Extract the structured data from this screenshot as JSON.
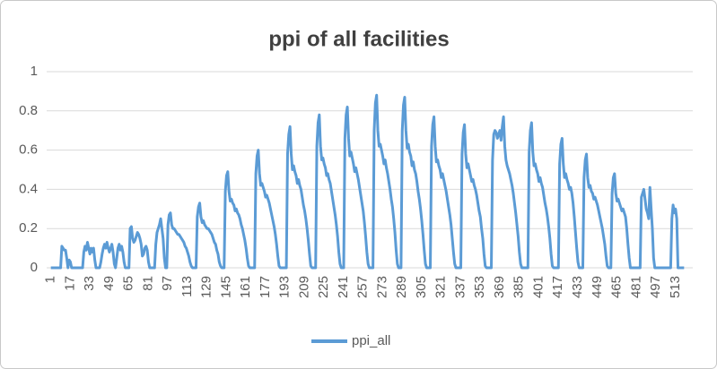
{
  "chart_data": {
    "type": "line",
    "title": "ppi of all facilities",
    "x": [
      1,
      2,
      3,
      4,
      5,
      6,
      7,
      8,
      9,
      10,
      11,
      12,
      13,
      14,
      15,
      16,
      17,
      18,
      19,
      20,
      21,
      22,
      23,
      24,
      25,
      26,
      27,
      28,
      29,
      30,
      31,
      32,
      33,
      34,
      35,
      36,
      37,
      38,
      39,
      40,
      41,
      42,
      43,
      44,
      45,
      46,
      47,
      48,
      49,
      50,
      51,
      52,
      53,
      54,
      55,
      56,
      57,
      58,
      59,
      60,
      61,
      62,
      63,
      64,
      65,
      66,
      67,
      68,
      69,
      70,
      71,
      72,
      73,
      74,
      75,
      76,
      77,
      78,
      79,
      80,
      81,
      82,
      83,
      84,
      85,
      86,
      87,
      88,
      89,
      90,
      91,
      92,
      93,
      94,
      95,
      96,
      97,
      98,
      99,
      100,
      101,
      102,
      103,
      104,
      105,
      106,
      107,
      108,
      109,
      110,
      111,
      112,
      113,
      114,
      115,
      116,
      117,
      118,
      119,
      120,
      121,
      122,
      123,
      124,
      125,
      126,
      127,
      128,
      129,
      130,
      131,
      132,
      133,
      134,
      135,
      136,
      137,
      138,
      139,
      140,
      141,
      142,
      143,
      144,
      145,
      146,
      147,
      148,
      149,
      150,
      151,
      152,
      153,
      154,
      155,
      156,
      157,
      158,
      159,
      160,
      161,
      162,
      163,
      164,
      165,
      166,
      167,
      168,
      169,
      170,
      171,
      172,
      173,
      174,
      175,
      176,
      177,
      178,
      179,
      180,
      181,
      182,
      183,
      184,
      185,
      186,
      187,
      188,
      189,
      190,
      191,
      192,
      193,
      194,
      195,
      196,
      197,
      198,
      199,
      200,
      201,
      202,
      203,
      204,
      205,
      206,
      207,
      208,
      209,
      210,
      211,
      212,
      213,
      214,
      215,
      216,
      217,
      218,
      219,
      220,
      221,
      222,
      223,
      224,
      225,
      226,
      227,
      228,
      229,
      230,
      231,
      232,
      233,
      234,
      235,
      236,
      237,
      238,
      239,
      240,
      241,
      242,
      243,
      244,
      245,
      246,
      247,
      248,
      249,
      250,
      251,
      252,
      253,
      254,
      255,
      256,
      257,
      258,
      259,
      260,
      261,
      262,
      263,
      264,
      265,
      266,
      267,
      268,
      269,
      270,
      271,
      272,
      273,
      274,
      275,
      276,
      277,
      278,
      279,
      280,
      281,
      282,
      283,
      284,
      285,
      286,
      287,
      288,
      289,
      290,
      291,
      292,
      293,
      294,
      295,
      296,
      297,
      298,
      299,
      300,
      301,
      302,
      303,
      304,
      305,
      306,
      307,
      308,
      309,
      310,
      311,
      312,
      313,
      314,
      315,
      316,
      317,
      318,
      319,
      320,
      321,
      322,
      323,
      324,
      325,
      326,
      327,
      328,
      329,
      330,
      331,
      332,
      333,
      334,
      335,
      336,
      337,
      338,
      339,
      340,
      341,
      342,
      343,
      344,
      345,
      346,
      347,
      348,
      349,
      350,
      351,
      352,
      353,
      354,
      355,
      356,
      357,
      358,
      359,
      360,
      361,
      362,
      363,
      364,
      365,
      366,
      367,
      368,
      369,
      370,
      371,
      372,
      373,
      374,
      375,
      376,
      377,
      378,
      379,
      380,
      381,
      382,
      383,
      384,
      385,
      386,
      387,
      388,
      389,
      390,
      391,
      392,
      393,
      394,
      395,
      396,
      397,
      398,
      399,
      400,
      401,
      402,
      403,
      404,
      405,
      406,
      407,
      408,
      409,
      410,
      411,
      412,
      413,
      414,
      415,
      416,
      417,
      418,
      419,
      420,
      421,
      422,
      423,
      424,
      425,
      426,
      427,
      428,
      429,
      430,
      431,
      432,
      433,
      434,
      435,
      436,
      437,
      438,
      439,
      440,
      441,
      442,
      443,
      444,
      445,
      446,
      447,
      448,
      449,
      450,
      451,
      452,
      453,
      454,
      455,
      456,
      457,
      458,
      459,
      460,
      461,
      462,
      463,
      464,
      465,
      466,
      467,
      468,
      469,
      470,
      471,
      472,
      473,
      474,
      475,
      476,
      477,
      478,
      479,
      480,
      481,
      482,
      483,
      484,
      485,
      486,
      487,
      488,
      489,
      490,
      491,
      492,
      493,
      494,
      495,
      496,
      497,
      498,
      499,
      500,
      501,
      502,
      503,
      504,
      505,
      506,
      507,
      508,
      509,
      510,
      511,
      512,
      513,
      514,
      515,
      516,
      517,
      518,
      519,
      520
    ],
    "series": [
      {
        "name": "ppi_all",
        "color": "#5b9bd5",
        "values": [
          0,
          0,
          0,
          0,
          0,
          0,
          0,
          0,
          0,
          0.11,
          0.1,
          0.09,
          0.09,
          0.05,
          0,
          0.04,
          0.03,
          0,
          0,
          0,
          0,
          0,
          0,
          0,
          0,
          0,
          0,
          0.08,
          0.11,
          0.09,
          0.13,
          0.1,
          0.07,
          0.1,
          0.08,
          0.1,
          0.04,
          0,
          0,
          0,
          0,
          0.03,
          0.07,
          0.1,
          0.12,
          0.1,
          0.13,
          0.1,
          0.08,
          0.1,
          0.12,
          0.08,
          0.02,
          0,
          0.05,
          0.1,
          0.12,
          0.09,
          0.11,
          0.08,
          0.03,
          0,
          0,
          0,
          0,
          0.2,
          0.21,
          0.15,
          0.13,
          0.14,
          0.16,
          0.18,
          0.17,
          0.15,
          0.12,
          0.06,
          0.07,
          0.1,
          0.11,
          0.09,
          0.03,
          0,
          0,
          0,
          0,
          0,
          0.12,
          0.18,
          0.2,
          0.22,
          0.25,
          0.2,
          0.15,
          0.05,
          0,
          0,
          0.22,
          0.27,
          0.28,
          0.22,
          0.2,
          0.2,
          0.19,
          0.18,
          0.17,
          0.17,
          0.16,
          0.15,
          0.14,
          0.13,
          0.11,
          0.1,
          0.08,
          0.06,
          0.03,
          0.01,
          0,
          0,
          0,
          0,
          0.26,
          0.31,
          0.33,
          0.26,
          0.23,
          0.24,
          0.22,
          0.21,
          0.2,
          0.2,
          0.19,
          0.18,
          0.17,
          0.15,
          0.13,
          0.12,
          0.09,
          0.07,
          0.03,
          0.01,
          0,
          0,
          0,
          0.39,
          0.47,
          0.49,
          0.39,
          0.34,
          0.35,
          0.33,
          0.32,
          0.29,
          0.3,
          0.28,
          0.27,
          0.25,
          0.22,
          0.2,
          0.17,
          0.14,
          0.1,
          0.05,
          0.01,
          0,
          0,
          0,
          0,
          0,
          0.48,
          0.57,
          0.6,
          0.48,
          0.42,
          0.43,
          0.41,
          0.39,
          0.36,
          0.37,
          0.35,
          0.33,
          0.3,
          0.27,
          0.24,
          0.21,
          0.17,
          0.12,
          0.06,
          0.01,
          0,
          0,
          0,
          0,
          0,
          0,
          0.58,
          0.68,
          0.72,
          0.58,
          0.5,
          0.52,
          0.49,
          0.47,
          0.43,
          0.45,
          0.42,
          0.4,
          0.36,
          0.32,
          0.29,
          0.25,
          0.2,
          0.14,
          0.07,
          0.01,
          0,
          0,
          0,
          0,
          0.62,
          0.74,
          0.78,
          0.62,
          0.55,
          0.56,
          0.53,
          0.51,
          0.47,
          0.48,
          0.45,
          0.43,
          0.39,
          0.35,
          0.31,
          0.27,
          0.22,
          0.16,
          0.08,
          0.02,
          0,
          0,
          0,
          0.66,
          0.78,
          0.82,
          0.66,
          0.57,
          0.59,
          0.56,
          0.53,
          0.49,
          0.51,
          0.48,
          0.45,
          0.41,
          0.37,
          0.33,
          0.29,
          0.23,
          0.16,
          0.08,
          0.02,
          0,
          0,
          0,
          0,
          0.7,
          0.84,
          0.88,
          0.7,
          0.62,
          0.63,
          0.6,
          0.57,
          0.53,
          0.55,
          0.51,
          0.48,
          0.44,
          0.4,
          0.35,
          0.31,
          0.25,
          0.18,
          0.09,
          0.02,
          0,
          0,
          0,
          0.7,
          0.83,
          0.87,
          0.7,
          0.61,
          0.63,
          0.59,
          0.57,
          0.52,
          0.54,
          0.5,
          0.48,
          0.44,
          0.39,
          0.35,
          0.3,
          0.24,
          0.17,
          0.09,
          0.02,
          0,
          0,
          0,
          0,
          0.62,
          0.73,
          0.77,
          0.62,
          0.54,
          0.55,
          0.52,
          0.5,
          0.46,
          0.48,
          0.45,
          0.42,
          0.39,
          0.35,
          0.31,
          0.27,
          0.22,
          0.15,
          0.08,
          0.02,
          0,
          0,
          0,
          0,
          0,
          0.58,
          0.69,
          0.73,
          0.58,
          0.51,
          0.53,
          0.5,
          0.47,
          0.44,
          0.45,
          0.42,
          0.4,
          0.37,
          0.33,
          0.29,
          0.26,
          0.2,
          0.15,
          0.07,
          0.01,
          0,
          0,
          0,
          0,
          0,
          0.55,
          0.68,
          0.7,
          0.69,
          0.66,
          0.68,
          0.7,
          0.65,
          0.72,
          0.77,
          0.62,
          0.55,
          0.52,
          0.5,
          0.48,
          0.45,
          0.42,
          0.38,
          0.33,
          0.28,
          0.22,
          0.16,
          0.08,
          0.02,
          0,
          0,
          0,
          0,
          0,
          0,
          0.59,
          0.7,
          0.74,
          0.59,
          0.52,
          0.53,
          0.5,
          0.48,
          0.44,
          0.46,
          0.43,
          0.41,
          0.37,
          0.33,
          0.3,
          0.26,
          0.21,
          0.15,
          0.07,
          0.01,
          0,
          0,
          0,
          0,
          0,
          0.53,
          0.63,
          0.66,
          0.53,
          0.46,
          0.48,
          0.45,
          0.43,
          0.4,
          0.41,
          0.38,
          0.33,
          0.26,
          0.18,
          0.1,
          0.03,
          0,
          0,
          0,
          0,
          0.46,
          0.55,
          0.58,
          0.46,
          0.41,
          0.42,
          0.39,
          0.38,
          0.35,
          0.36,
          0.34,
          0.32,
          0.29,
          0.26,
          0.23,
          0.2,
          0.16,
          0.12,
          0.06,
          0.01,
          0,
          0,
          0,
          0.38,
          0.46,
          0.48,
          0.38,
          0.34,
          0.35,
          0.33,
          0.31,
          0.29,
          0.3,
          0.28,
          0.26,
          0.2,
          0.12,
          0.05,
          0,
          0,
          0,
          0,
          0,
          0,
          0,
          0,
          0,
          0.36,
          0.38,
          0.4,
          0.35,
          0.3,
          0.28,
          0.25,
          0.41,
          0.3,
          0.2,
          0.05,
          0,
          0,
          0,
          0,
          0,
          0,
          0,
          0,
          0,
          0,
          0,
          0,
          0,
          0,
          0.25,
          0.32,
          0.28,
          0.3,
          0.25,
          0,
          0,
          0,
          0,
          0,
          0
        ]
      }
    ],
    "xlim": [
      0.5,
      520.5
    ],
    "xticks": [
      1,
      17,
      33,
      49,
      65,
      81,
      97,
      113,
      129,
      145,
      161,
      177,
      193,
      209,
      225,
      241,
      257,
      273,
      289,
      305,
      321,
      337,
      353,
      369,
      385,
      401,
      417,
      433,
      449,
      465,
      481,
      497,
      513
    ],
    "ylim": [
      0,
      1
    ],
    "yticks": [
      0,
      0.2,
      0.4,
      0.6,
      0.8,
      1
    ],
    "grid": true,
    "legend": "bottom"
  }
}
